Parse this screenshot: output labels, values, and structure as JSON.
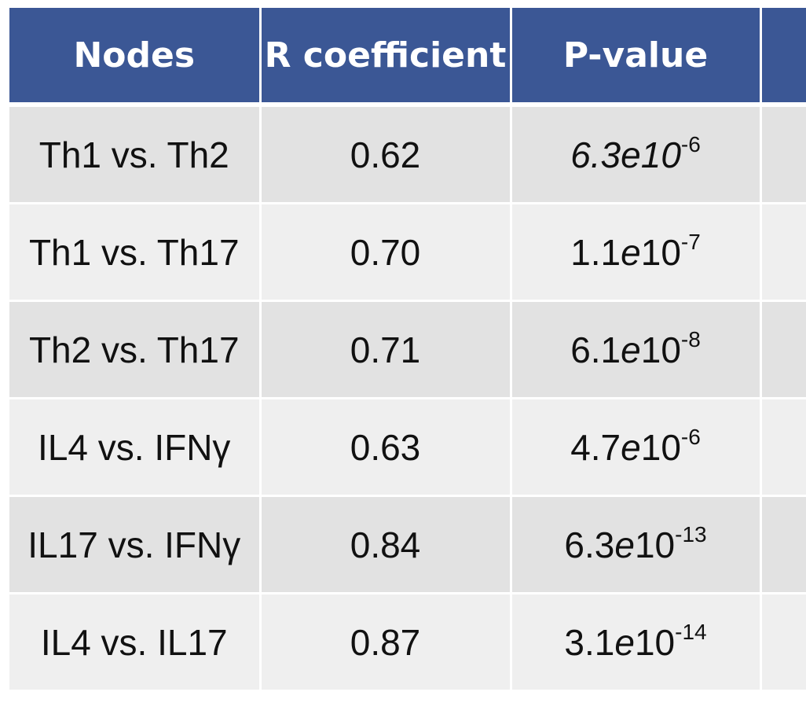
{
  "table": {
    "headers": [
      "Nodes",
      "R coefficient",
      "P-value",
      ""
    ],
    "rows": [
      {
        "nodes": "Th1 vs. Th2",
        "r": "0.62",
        "p": {
          "mantissa": "6.3",
          "e": "e",
          "base": "10",
          "exp": "-6",
          "all_italic": true
        }
      },
      {
        "nodes": "Th1 vs. Th17",
        "r": "0.70",
        "p": {
          "mantissa": "1.1",
          "e": "e",
          "base": "10",
          "exp": "-7",
          "all_italic": false
        }
      },
      {
        "nodes": "Th2 vs. Th17",
        "r": "0.71",
        "p": {
          "mantissa": "6.1",
          "e": "e",
          "base": "10",
          "exp": "-8",
          "all_italic": false
        }
      },
      {
        "nodes": "IL4 vs. IFNγ",
        "r": "0.63",
        "p": {
          "mantissa": "4.7",
          "e": "e",
          "base": "10",
          "exp": "-6",
          "all_italic": false
        }
      },
      {
        "nodes": "IL17 vs. IFNγ",
        "r": "0.84",
        "p": {
          "mantissa": "6.3",
          "e": "e",
          "base": "10",
          "exp": "-13",
          "all_italic": false
        }
      },
      {
        "nodes": "IL4 vs. IL17",
        "r": "0.87",
        "p": {
          "mantissa": "3.1",
          "e": "e",
          "base": "10",
          "exp": "-14",
          "all_italic": false
        }
      }
    ]
  },
  "colors": {
    "header_bg": "#3b5795",
    "header_text": "#ffffff",
    "row_odd": "#e2e2e2",
    "row_even": "#efefef"
  }
}
